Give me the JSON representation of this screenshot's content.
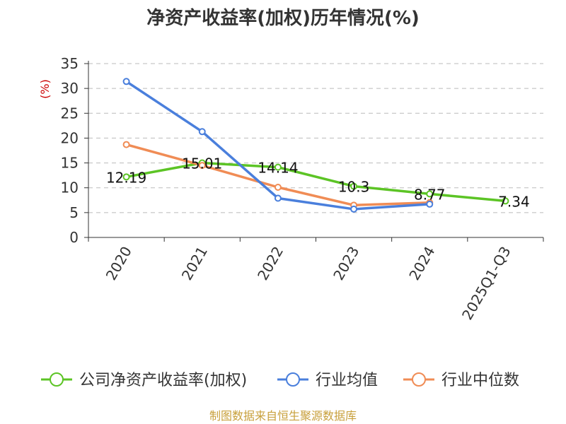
{
  "chart_data": {
    "type": "line",
    "title": "净资产收益率(加权)历年情况(%)",
    "ylabel": "(%)",
    "xlabel": "",
    "categories": [
      "2020",
      "2021",
      "2022",
      "2023",
      "2024",
      "2025Q1-Q3"
    ],
    "yticks": [
      "0",
      "5",
      "10",
      "15",
      "20",
      "25",
      "30",
      "35"
    ],
    "ylim": [
      0,
      35
    ],
    "grid": "horizontal-dashed",
    "legend_position": "bottom",
    "series": [
      {
        "name": "公司净资产收益率(加权)",
        "color": "#5cc425",
        "values": [
          12.19,
          15.01,
          14.14,
          10.3,
          8.77,
          7.34
        ],
        "labels": [
          "12.19",
          "15.01",
          "14.14",
          "10.3",
          "8.77",
          "7.34"
        ]
      },
      {
        "name": "行业均值",
        "color": "#4a7fdc",
        "values": [
          31.4,
          21.3,
          7.9,
          5.7,
          6.7,
          null
        ]
      },
      {
        "name": "行业中位数",
        "color": "#f08c55",
        "values": [
          18.7,
          14.5,
          10.1,
          6.5,
          7.0,
          null
        ]
      }
    ]
  },
  "colors": {
    "axis_label": "#cc0000",
    "source": "#c8a03c"
  },
  "source": "制图数据来自恒生聚源数据库"
}
